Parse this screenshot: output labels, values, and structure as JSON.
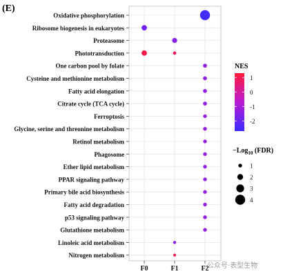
{
  "panel_label": "(E)",
  "watermark": "公众号·表型生物",
  "chart_data": {
    "type": "scatter",
    "subtype": "bubble",
    "x_categories": [
      "F0",
      "F1",
      "F2"
    ],
    "y_categories": [
      "Oxidative phosphorylation",
      "Ribosome biogenesis in eukaryotes",
      "Proteasome",
      "Phototransduction",
      "One carbon pool by folate",
      "Cysteine and methionine metabolism",
      "Fatty acid elongation",
      "Citrate cycle (TCA cycle)",
      "Ferroptosis",
      "Glycine, serine and threonine metabolism",
      "Retinol metabolism",
      "Phagosome",
      "Ether lipid metabolism",
      "PPAR signaling pathway",
      "Primary bile acid biosynthesis",
      "Fatty acid degradation",
      "p53 signaling pathway",
      "Glutathione metabolism",
      "Linoleic acid metabolism",
      "Nitrogen metabolism"
    ],
    "points": [
      {
        "x": "F2",
        "y": "Oxidative phosphorylation",
        "nes": -2.6,
        "fdr": 4.0
      },
      {
        "x": "F0",
        "y": "Ribosome biogenesis in eukaryotes",
        "nes": -1.8,
        "fdr": 1.8
      },
      {
        "x": "F1",
        "y": "Proteasome",
        "nes": -1.5,
        "fdr": 1.6
      },
      {
        "x": "F0",
        "y": "Phototransduction",
        "nes": 1.1,
        "fdr": 1.8
      },
      {
        "x": "F1",
        "y": "Phototransduction",
        "nes": 1.0,
        "fdr": 0.8
      },
      {
        "x": "F2",
        "y": "One carbon pool by folate",
        "nes": -1.3,
        "fdr": 1.1
      },
      {
        "x": "F2",
        "y": "Cysteine and methionine metabolism",
        "nes": -1.3,
        "fdr": 1.1
      },
      {
        "x": "F2",
        "y": "Fatty acid elongation",
        "nes": -1.3,
        "fdr": 1.1
      },
      {
        "x": "F2",
        "y": "Citrate cycle (TCA cycle)",
        "nes": -1.3,
        "fdr": 1.1
      },
      {
        "x": "F2",
        "y": "Ferroptosis",
        "nes": -1.3,
        "fdr": 1.0
      },
      {
        "x": "F2",
        "y": "Glycine, serine and threonine metabolism",
        "nes": -1.3,
        "fdr": 1.0
      },
      {
        "x": "F2",
        "y": "Retinol metabolism",
        "nes": -1.3,
        "fdr": 1.0
      },
      {
        "x": "F2",
        "y": "Phagosome",
        "nes": -1.3,
        "fdr": 1.0
      },
      {
        "x": "F2",
        "y": "Ether lipid metabolism",
        "nes": -1.3,
        "fdr": 1.0
      },
      {
        "x": "F2",
        "y": "PPAR signaling pathway",
        "nes": -1.3,
        "fdr": 1.0
      },
      {
        "x": "F2",
        "y": "Primary bile acid biosynthesis",
        "nes": -1.3,
        "fdr": 1.0
      },
      {
        "x": "F2",
        "y": "Fatty acid degradation",
        "nes": -1.3,
        "fdr": 1.0
      },
      {
        "x": "F2",
        "y": "p53 signaling pathway",
        "nes": -1.3,
        "fdr": 1.0
      },
      {
        "x": "F2",
        "y": "Glutathione metabolism",
        "nes": -1.3,
        "fdr": 1.0
      },
      {
        "x": "F1",
        "y": "Linoleic acid metabolism",
        "nes": -1.3,
        "fdr": 0.7
      },
      {
        "x": "F1",
        "y": "Nitrogen metabolism",
        "nes": 1.0,
        "fdr": 0.6
      }
    ],
    "color_legend": {
      "title": "NES",
      "ticks": [
        1,
        0,
        -1,
        -2
      ],
      "range": [
        -2.7,
        1.3
      ],
      "low_color": "#3b2cff",
      "mid_color": "#b81bd4",
      "high_color": "#ff1a3a"
    },
    "size_legend": {
      "title_prefix": "−Log",
      "title_sub": "10",
      "title_suffix": " (FDR)",
      "values": [
        1,
        2,
        3,
        4
      ]
    },
    "grid": true,
    "legend_position": "right"
  }
}
